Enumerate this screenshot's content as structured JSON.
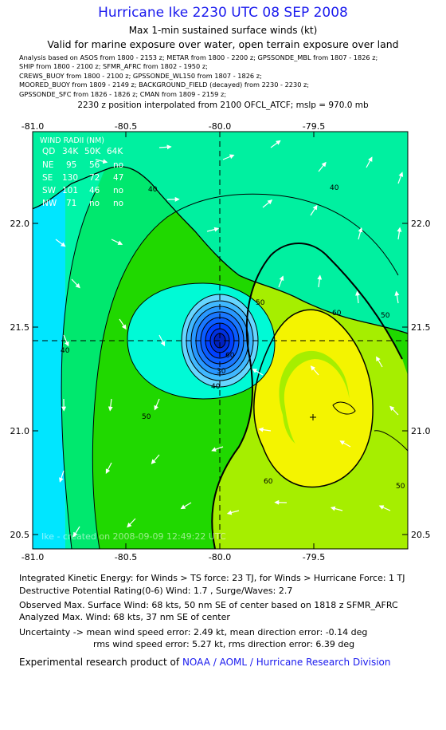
{
  "header": {
    "title": "Hurricane Ike 2230 UTC 08 SEP 2008",
    "subtitle1": "Max 1-min sustained surface winds (kt)",
    "subtitle2": "Valid for marine exposure over water, open terrain exposure over land",
    "sources": [
      "Analysis based on  ASOS from 1800 - 2153 z;  METAR from 1800 - 2200 z;  GPSSONDE_MBL from 1807 - 1826 z;",
      "SHIP from 1800 - 2100 z;  SFMR_AFRC from 1802 - 1950 z;",
      "CREWS_BUOY from 1800 - 2100 z;  GPSSONDE_WL150 from 1807 - 1826 z;",
      "MOORED_BUOY from 1809 - 2149 z;  BACKGROUND_FIELD (decayed) from 2230 - 2230 z;",
      "GPSSONDE_SFC from 1826 - 1826 z;  CMAN from 1809 - 2159 z;"
    ],
    "position_note": "2230 z position interpolated from 2100 OFCL_ATCF; mslp = 970.0 mb"
  },
  "map": {
    "x_ticks": [
      "-81.0",
      "-80.5",
      "-80.0",
      "-79.5"
    ],
    "y_ticks": [
      "22.0",
      "21.5",
      "21.0",
      "20.5"
    ],
    "watermark": "Ike - created on 2008-09-09 12:49:22 UTC",
    "contour_labels": [
      "40",
      "40",
      "40",
      "50",
      "50",
      "60",
      "60",
      "30",
      "40",
      "50",
      "50",
      "60"
    ],
    "colors": {
      "ocean": "#00e6ff",
      "band_20_30": "#00fad6",
      "band_30_40": "#00f5a8",
      "band_40_50": "#00e86e",
      "band_50_60": "#20d800",
      "band_60_64": "#a6ee00",
      "band_64_plus": "#f4f400",
      "land": "#00f0a0",
      "core_blue": "#0040ff"
    },
    "wind_radii": {
      "title": "WIND RADII (NM)",
      "header": [
        "QD",
        "34K",
        "50K",
        "64K"
      ],
      "rows": [
        [
          "NE",
          "95",
          "56",
          "no"
        ],
        [
          "SE",
          "130",
          "72",
          "47"
        ],
        [
          "SW",
          "101",
          "46",
          "no"
        ],
        [
          "NW",
          "71",
          "no",
          "no"
        ]
      ]
    }
  },
  "footer": {
    "ike": "Integrated Kinetic Energy:  for Winds > TS force: 23 TJ,  for Winds > Hurricane Force: 1 TJ",
    "dpr": "Destructive Potential Rating(0-6)   Wind: 1.7 , Surge/Waves: 2.7",
    "observed": "Observed Max. Surface Wind: 68 kts, 50 nm SE of center based on 1818 z SFMR_AFRC",
    "analyzed": "Analyzed Max. Wind: 68 kts, 37 nm SE of center",
    "uncert1": "Uncertainty -> mean wind speed error: 2.49 kt,   mean direction error:  -0.14 deg",
    "uncert2": "rms wind speed error: 5.27 kt,   rms direction error: 6.39 deg",
    "credit_prefix": "Experimental research product of",
    "credit_org": "NOAA / AOML / Hurricane Research Division"
  }
}
